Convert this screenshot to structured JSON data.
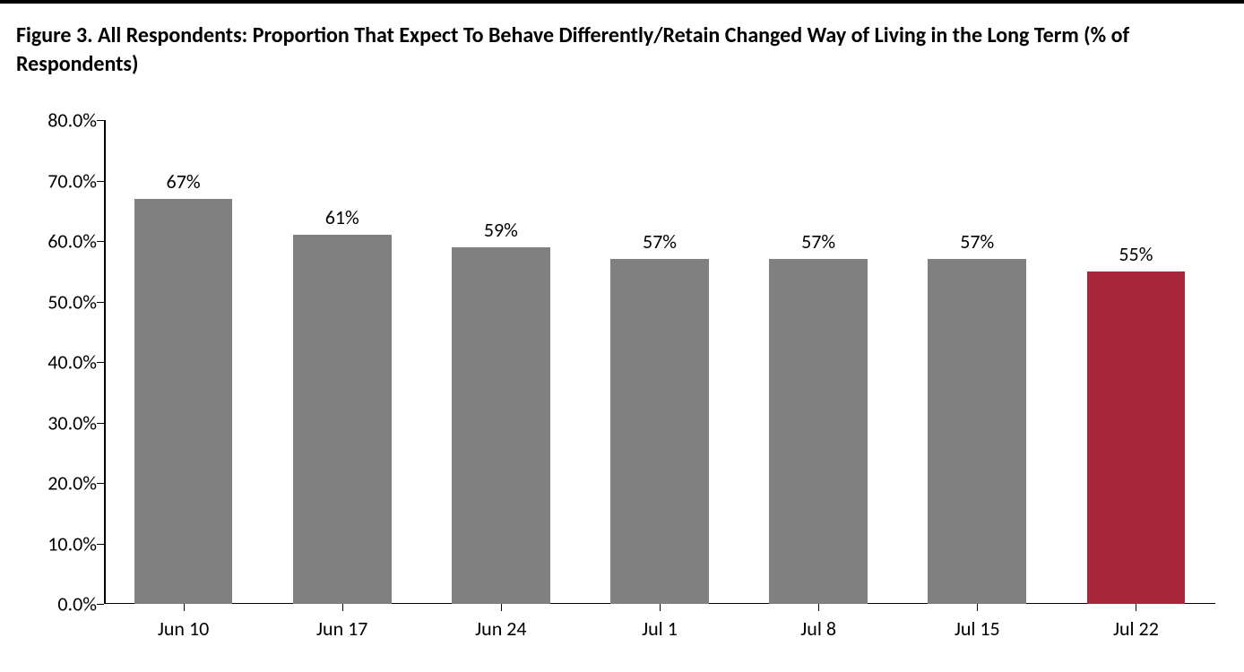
{
  "title": "Figure 3. All Respondents: Proportion That Expect To Behave Differently/Retain Changed Way of Living in the Long Term (% of Respondents)",
  "title_fontsize": 24,
  "title_color": "#000000",
  "chart": {
    "type": "bar",
    "background_color": "#ffffff",
    "top_border_color": "#000000",
    "axis_color": "#000000",
    "categories": [
      "Jun 10",
      "Jun 17",
      "Jun 24",
      "Jul 1",
      "Jul 8",
      "Jul 15",
      "Jul 22"
    ],
    "values": [
      67,
      61,
      59,
      57,
      57,
      57,
      55
    ],
    "value_labels": [
      "67%",
      "61%",
      "59%",
      "57%",
      "57%",
      "57%",
      "55%"
    ],
    "bar_colors": [
      "#808080",
      "#808080",
      "#808080",
      "#808080",
      "#808080",
      "#808080",
      "#a8273b"
    ],
    "ymin": 0,
    "ymax": 80,
    "yticks": [
      0,
      10,
      20,
      30,
      40,
      50,
      60,
      70,
      80
    ],
    "ytick_labels": [
      "0.0%",
      "10.0%",
      "20.0%",
      "30.0%",
      "40.0%",
      "50.0%",
      "60.0%",
      "70.0%",
      "80.0%"
    ],
    "bar_width_ratio": 0.62,
    "value_label_fontsize": 22,
    "axis_label_fontsize": 22,
    "ytick_label_fontsize": 22
  }
}
